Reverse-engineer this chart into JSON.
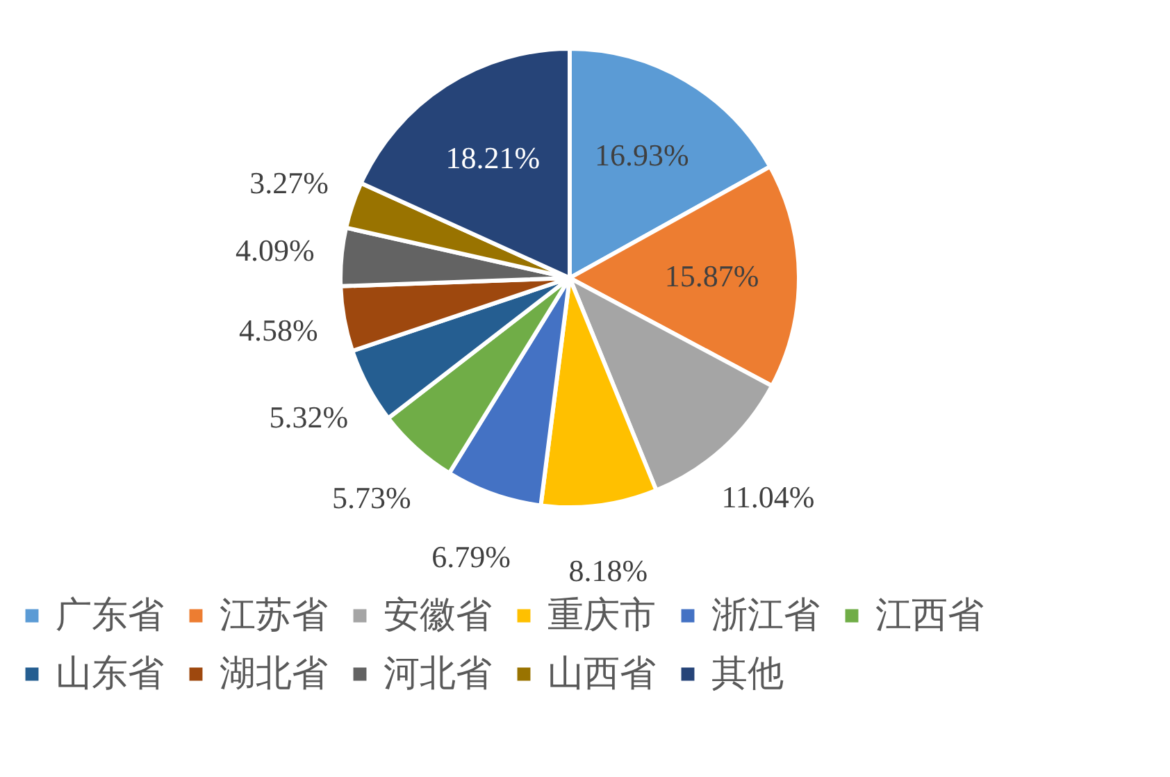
{
  "chart_data": {
    "type": "pie",
    "categories": [
      "广东省",
      "江苏省",
      "安徽省",
      "重庆市",
      "浙江省",
      "江西省",
      "山东省",
      "湖北省",
      "河北省",
      "山西省",
      "其他"
    ],
    "values": [
      16.93,
      15.87,
      11.04,
      8.18,
      6.79,
      5.73,
      5.32,
      4.58,
      4.09,
      3.27,
      18.21
    ],
    "colors": [
      "#5b9bd5",
      "#ed7d31",
      "#a5a5a5",
      "#ffc000",
      "#4472c4",
      "#70ad47",
      "#255e91",
      "#9e480e",
      "#636363",
      "#997300",
      "#264478"
    ],
    "value_labels": [
      "16.93%",
      "15.87%",
      "11.04%",
      "8.18%",
      "6.79%",
      "5.73%",
      "5.32%",
      "4.58%",
      "4.09%",
      "3.27%",
      "18.21%"
    ],
    "legend": "bottom"
  }
}
